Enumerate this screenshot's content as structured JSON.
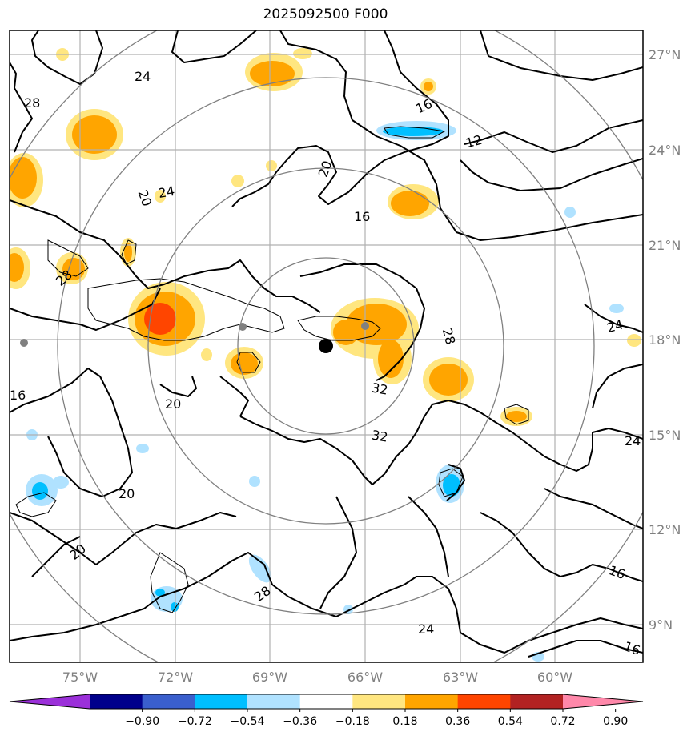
{
  "title": "2025092500 F000",
  "map": {
    "lon_labels": [
      "75°W",
      "72°W",
      "69°W",
      "66°W",
      "63°W",
      "60°W"
    ],
    "lat_labels": [
      "27°N",
      "24°N",
      "21°N",
      "18°N",
      "15°N",
      "12°N",
      "9°N"
    ],
    "contour_labels": [
      "24",
      "28",
      "16",
      "12",
      "20",
      "16",
      "28",
      "20",
      "16",
      "28",
      "24",
      "32",
      "32",
      "20",
      "24",
      "20",
      "20",
      "28",
      "24",
      "16",
      "16",
      "24"
    ],
    "colors": {
      "land_contour": "#000000",
      "range_rings": "#808080",
      "gridlines": "#b0b0b0",
      "center_marker": "#000000",
      "city_dots": "#808080"
    }
  },
  "colorbar": {
    "ticks": [
      "−0.90",
      "−0.72",
      "−0.54",
      "−0.36",
      "−0.18",
      "0.18",
      "0.36",
      "0.54",
      "0.72",
      "0.90"
    ],
    "colors": [
      "#9b30d9",
      "#00008b",
      "#3a5fcd",
      "#00bfff",
      "#b0e2ff",
      "#ffffff",
      "#ffe680",
      "#ffa500",
      "#ff4500",
      "#b22222",
      "#ff88aa"
    ]
  }
}
